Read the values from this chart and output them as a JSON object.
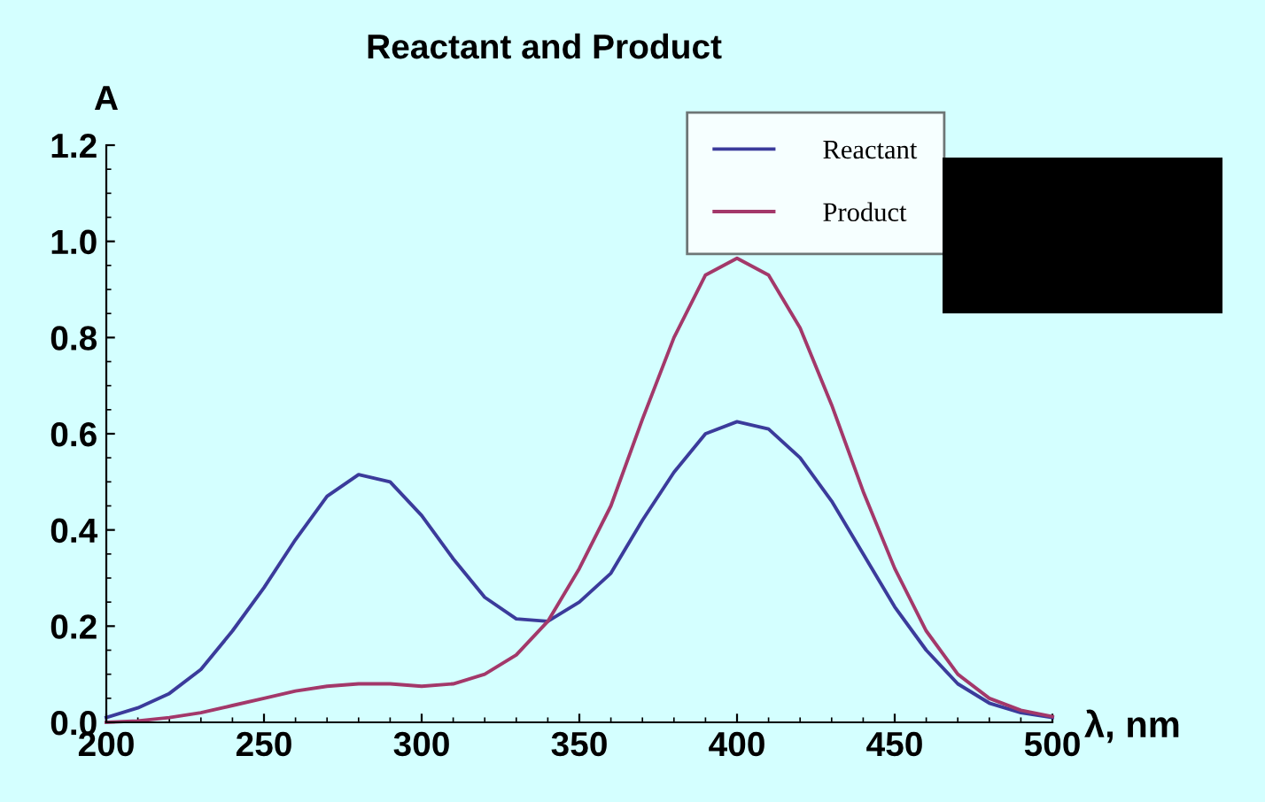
{
  "chart_data": {
    "type": "line",
    "title": "Reactant and Product",
    "ylabel": "A",
    "xlabel": "λ, nm",
    "x": [
      200,
      210,
      220,
      230,
      240,
      250,
      260,
      270,
      280,
      290,
      300,
      310,
      320,
      330,
      340,
      350,
      360,
      370,
      380,
      390,
      400,
      410,
      420,
      430,
      440,
      450,
      460,
      470,
      480,
      490,
      500
    ],
    "series": [
      {
        "name": "Reactant",
        "color": "#3b3b9b",
        "values": [
          0.01,
          0.03,
          0.06,
          0.11,
          0.19,
          0.28,
          0.38,
          0.47,
          0.515,
          0.5,
          0.43,
          0.34,
          0.26,
          0.215,
          0.21,
          0.25,
          0.31,
          0.42,
          0.52,
          0.6,
          0.625,
          0.61,
          0.55,
          0.46,
          0.35,
          0.24,
          0.15,
          0.08,
          0.04,
          0.02,
          0.01
        ]
      },
      {
        "name": "Product",
        "color": "#a3386a",
        "values": [
          0.0,
          0.003,
          0.01,
          0.02,
          0.035,
          0.05,
          0.065,
          0.075,
          0.08,
          0.08,
          0.075,
          0.08,
          0.1,
          0.14,
          0.21,
          0.32,
          0.45,
          0.63,
          0.8,
          0.93,
          0.965,
          0.93,
          0.82,
          0.66,
          0.48,
          0.32,
          0.19,
          0.1,
          0.05,
          0.025,
          0.012
        ]
      }
    ],
    "xlim": [
      200,
      500
    ],
    "ylim": [
      0,
      1.2
    ],
    "xticks": [
      200,
      250,
      300,
      350,
      400,
      450,
      500
    ],
    "yticks": [
      {
        "value": 0,
        "label": "0.0"
      },
      0.2,
      0.4,
      0.6,
      0.8,
      {
        "value": 1,
        "label": "1.0"
      },
      1.2
    ],
    "grid": false,
    "legend": "top right",
    "marker": "none",
    "line_style": "solid"
  }
}
